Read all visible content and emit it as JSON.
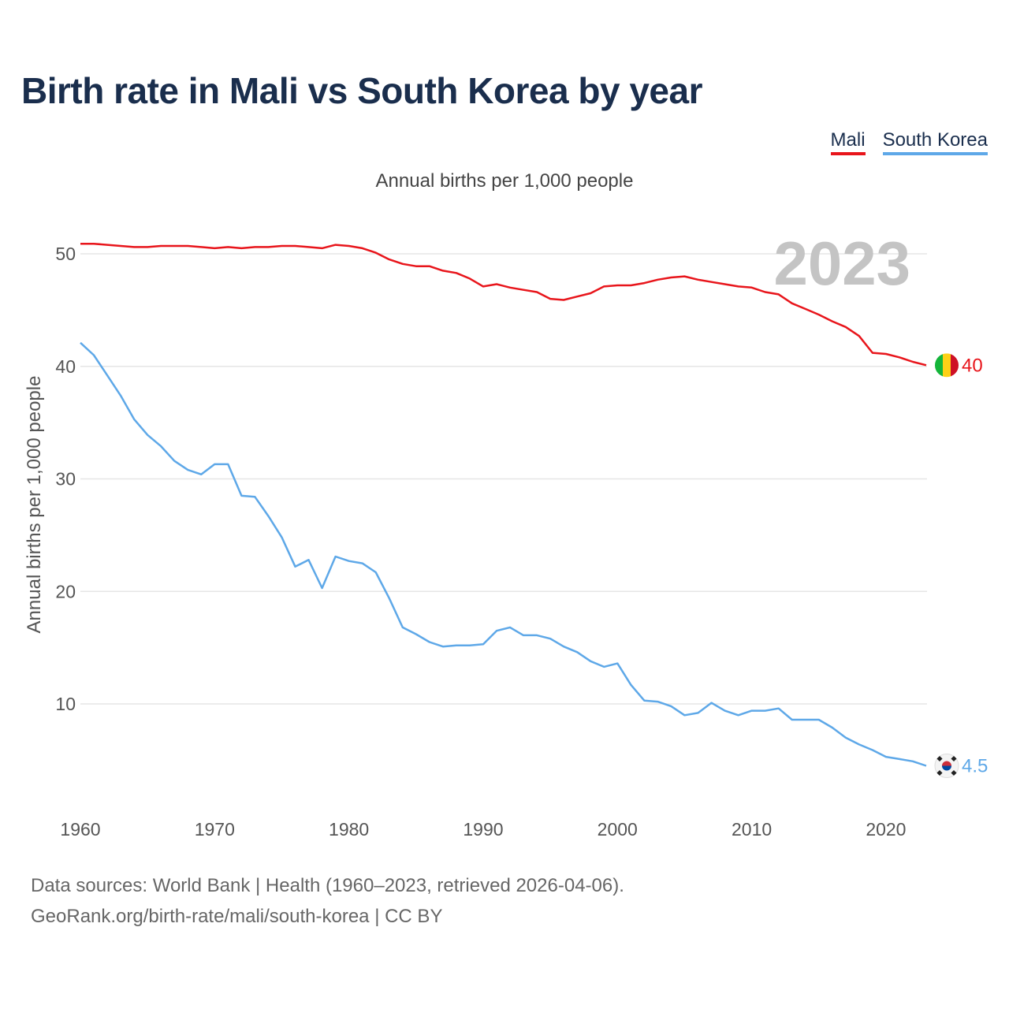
{
  "title": "Birth rate in Mali vs South Korea by year",
  "subtitle": "Annual births per 1,000 people",
  "legend": [
    {
      "label": "Mali",
      "color": "#e8151b"
    },
    {
      "label": "South Korea",
      "color": "#5ea8e8"
    }
  ],
  "footer": {
    "sources": "Data sources: World Bank | Health (1960–2023, retrieved 2026-04-06).",
    "url": "GeoRank.org/birth-rate/mali/south-korea | CC BY"
  },
  "chart_data": {
    "type": "line",
    "title": "Birth rate in Mali vs South Korea by year",
    "ylabel": "Annual births per 1,000 people",
    "xlabel": "",
    "year_label": "2023",
    "xlim": [
      1960,
      2023
    ],
    "ylim": [
      2,
      53
    ],
    "grid": true,
    "yticks": [
      10,
      20,
      30,
      40,
      50
    ],
    "xticks": [
      1960,
      1970,
      1980,
      1990,
      2000,
      2010,
      2020
    ],
    "x": [
      1960,
      1961,
      1962,
      1963,
      1964,
      1965,
      1966,
      1967,
      1968,
      1969,
      1970,
      1971,
      1972,
      1973,
      1974,
      1975,
      1976,
      1977,
      1978,
      1979,
      1980,
      1981,
      1982,
      1983,
      1984,
      1985,
      1986,
      1987,
      1988,
      1989,
      1990,
      1991,
      1992,
      1993,
      1994,
      1995,
      1996,
      1997,
      1998,
      1999,
      2000,
      2001,
      2002,
      2003,
      2004,
      2005,
      2006,
      2007,
      2008,
      2009,
      2010,
      2011,
      2012,
      2013,
      2014,
      2015,
      2016,
      2017,
      2018,
      2019,
      2020,
      2021,
      2022,
      2023
    ],
    "series": [
      {
        "name": "Mali",
        "color": "#e8151b",
        "end_label": "40",
        "flag": "mali-flag",
        "values": [
          50.9,
          50.9,
          50.8,
          50.7,
          50.6,
          50.6,
          50.7,
          50.7,
          50.7,
          50.6,
          50.5,
          50.6,
          50.5,
          50.6,
          50.6,
          50.7,
          50.7,
          50.6,
          50.5,
          50.8,
          50.7,
          50.5,
          50.1,
          49.5,
          49.1,
          48.9,
          48.9,
          48.5,
          48.3,
          47.8,
          47.1,
          47.3,
          47.0,
          46.8,
          46.6,
          46.0,
          45.9,
          46.2,
          46.5,
          47.1,
          47.2,
          47.2,
          47.4,
          47.7,
          47.9,
          48.0,
          47.7,
          47.5,
          47.3,
          47.1,
          47.0,
          46.6,
          46.4,
          45.6,
          45.1,
          44.6,
          44.0,
          43.5,
          42.7,
          41.2,
          41.1,
          40.8,
          40.4,
          40.1
        ]
      },
      {
        "name": "South Korea",
        "color": "#5ea8e8",
        "end_label": "4.5",
        "flag": "south-korea-flag",
        "values": [
          42.1,
          41.0,
          39.2,
          37.4,
          35.3,
          33.9,
          32.9,
          31.6,
          30.8,
          30.4,
          31.3,
          31.3,
          28.5,
          28.4,
          26.7,
          24.8,
          22.2,
          22.8,
          20.3,
          23.1,
          22.7,
          22.5,
          21.7,
          19.4,
          16.8,
          16.2,
          15.5,
          15.1,
          15.2,
          15.2,
          15.3,
          16.5,
          16.8,
          16.1,
          16.1,
          15.8,
          15.1,
          14.6,
          13.8,
          13.3,
          13.6,
          11.7,
          10.3,
          10.2,
          9.8,
          9.0,
          9.2,
          10.1,
          9.4,
          9.0,
          9.4,
          9.4,
          9.6,
          8.6,
          8.6,
          8.6,
          7.9,
          7.0,
          6.4,
          5.9,
          5.3,
          5.1,
          4.9,
          4.5
        ]
      }
    ]
  }
}
